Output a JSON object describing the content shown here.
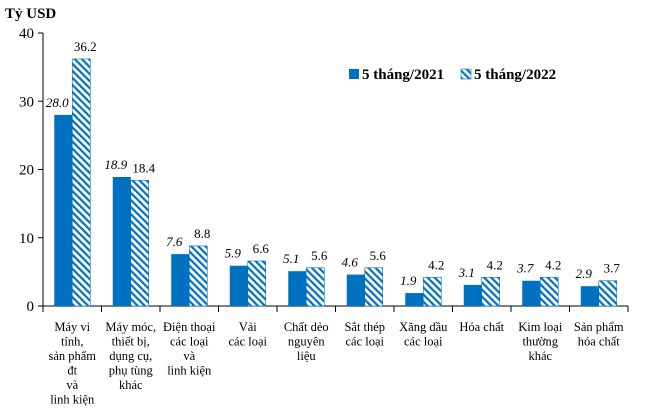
{
  "chart_data": {
    "type": "bar",
    "unit_label": "Tỷ USD",
    "ylim": [
      0,
      40
    ],
    "yticks": [
      "0",
      "10",
      "20",
      "30",
      "40"
    ],
    "grid": false,
    "legend_position": "top-right",
    "categories": [
      [
        "Máy vi",
        "tính,",
        "sản phẩm",
        "đt",
        "và",
        "linh kiện"
      ],
      [
        "Máy móc,",
        "thiết bị,",
        "dụng cụ,",
        "phụ tùng",
        "khác"
      ],
      [
        "Điện thoại",
        "các loại",
        "và",
        "linh kiện"
      ],
      [
        "Vải",
        "các loại"
      ],
      [
        "Chất dẻo",
        "nguyên",
        "liệu"
      ],
      [
        "Sắt thép",
        "các loại"
      ],
      [
        "Xăng dầu",
        "các loại"
      ],
      [
        "Hóa chất"
      ],
      [
        "Kim loại",
        "thường",
        "khác"
      ],
      [
        "Sản phẩm",
        "hóa chất"
      ]
    ],
    "series": [
      {
        "name": "5 tháng/2021",
        "color": "#0070C0",
        "style": "solid",
        "values": [
          28.0,
          18.9,
          7.6,
          5.9,
          5.1,
          4.6,
          1.9,
          3.1,
          3.7,
          2.9
        ],
        "labels": [
          "28.0",
          "18.9",
          "7.6",
          "5.9",
          "5.1",
          "4.6",
          "1.9",
          "3.1",
          "3.7",
          "2.9"
        ]
      },
      {
        "name": "5 tháng/2022",
        "color": "#0070C0",
        "style": "hatched",
        "values": [
          36.2,
          18.4,
          8.8,
          6.6,
          5.6,
          5.6,
          4.2,
          4.2,
          4.2,
          3.7
        ],
        "labels": [
          "36.2",
          "18.4",
          "8.8",
          "6.6",
          "5.6",
          "5.6",
          "4.2",
          "4.2",
          "4.2",
          "3.7"
        ]
      }
    ]
  }
}
